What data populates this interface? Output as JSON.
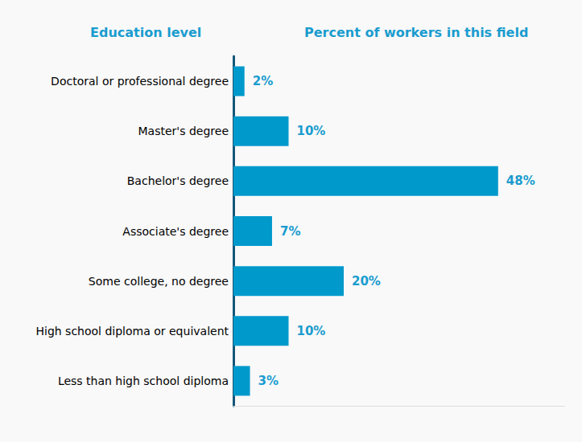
{
  "chart_data": {
    "type": "bar",
    "orientation": "horizontal",
    "ylabel": "Education level",
    "xlabel": "Percent of workers in this field",
    "categories": [
      "Doctoral or professional degree",
      "Master's degree",
      "Bachelor's degree",
      "Associate's degree",
      "Some college, no degree",
      "High school diploma or equivalent",
      "Less than high school diploma"
    ],
    "values": [
      2,
      10,
      48,
      7,
      20,
      10,
      3
    ],
    "value_labels": [
      "2%",
      "10%",
      "48%",
      "7%",
      "20%",
      "10%",
      "3%"
    ],
    "color": "#0099cc",
    "xlim": [
      0,
      60
    ],
    "grid": false,
    "data_labels": true,
    "tick_labels": "y"
  }
}
